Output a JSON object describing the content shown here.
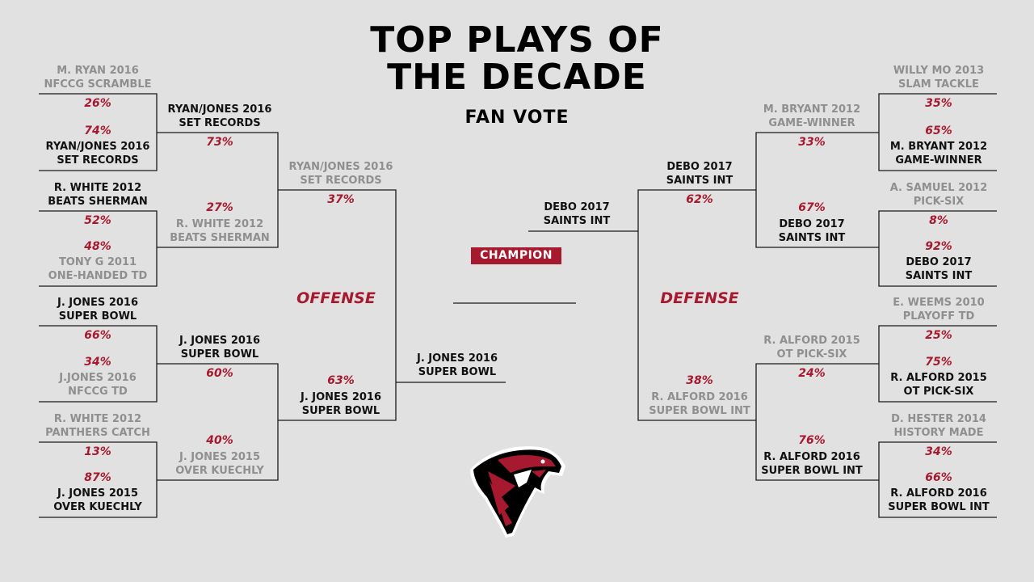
{
  "title": {
    "line1": "TOP PLAYS OF",
    "line2": "THE DECADE"
  },
  "subtitle": "FAN VOTE",
  "champion_label": "CHAMPION",
  "regions": {
    "left": "OFFENSE",
    "right": "DEFENSE"
  },
  "champion_name": "",
  "logo": "falcons-logo",
  "colors": {
    "accent": "#a6192e",
    "background": "#e1e1e1",
    "winner_text": "#111111",
    "loser_text": "#8f8f8f"
  },
  "left": {
    "r1": [
      {
        "top": {
          "name": [
            "M. RYAN 2016",
            "NFCCG SCRAMBLE"
          ],
          "pct": "26%",
          "winner": false
        },
        "bottom": {
          "name": [
            "RYAN/JONES 2016",
            "SET RECORDS"
          ],
          "pct": "74%",
          "winner": true
        }
      },
      {
        "top": {
          "name": [
            "R. WHITE 2012",
            "BEATS SHERMAN"
          ],
          "pct": "52%",
          "winner": true
        },
        "bottom": {
          "name": [
            "TONY G 2011",
            "ONE-HANDED TD"
          ],
          "pct": "48%",
          "winner": false
        }
      },
      {
        "top": {
          "name": [
            "J. JONES 2016",
            "SUPER BOWL"
          ],
          "pct": "66%",
          "winner": true
        },
        "bottom": {
          "name": [
            "J.JONES 2016",
            "NFCCG TD"
          ],
          "pct": "34%",
          "winner": false
        }
      },
      {
        "top": {
          "name": [
            "R. WHITE 2012",
            "PANTHERS CATCH"
          ],
          "pct": "13%",
          "winner": false
        },
        "bottom": {
          "name": [
            "J. JONES 2015",
            "OVER KUECHLY"
          ],
          "pct": "87%",
          "winner": true
        }
      }
    ],
    "r2": [
      {
        "top": {
          "name": [
            "RYAN/JONES 2016",
            "SET RECORDS"
          ],
          "pct": "73%",
          "winner": true
        },
        "bottom": {
          "name": [
            "R. WHITE 2012",
            "BEATS SHERMAN"
          ],
          "pct": "27%",
          "winner": false
        }
      },
      {
        "top": {
          "name": [
            "J. JONES 2016",
            "SUPER BOWL"
          ],
          "pct": "60%",
          "winner": true
        },
        "bottom": {
          "name": [
            "J. JONES 2015",
            "OVER KUECHLY"
          ],
          "pct": "40%",
          "winner": false
        }
      }
    ],
    "r3": {
      "top": {
        "name": [
          "RYAN/JONES 2016",
          "SET RECORDS"
        ],
        "pct": "37%",
        "winner": false
      },
      "bottom": {
        "name": [
          "J. JONES 2016",
          "SUPER BOWL"
        ],
        "pct": "63%",
        "winner": true
      }
    },
    "final": {
      "name": [
        "J. JONES 2016",
        "SUPER BOWL"
      ]
    }
  },
  "right": {
    "r1": [
      {
        "top": {
          "name": [
            "WILLY MO 2013",
            "SLAM TACKLE"
          ],
          "pct": "35%",
          "winner": false
        },
        "bottom": {
          "name": [
            "M. BRYANT 2012",
            "GAME-WINNER"
          ],
          "pct": "65%",
          "winner": true
        }
      },
      {
        "top": {
          "name": [
            "A. SAMUEL 2012",
            "PICK-SIX"
          ],
          "pct": "8%",
          "winner": false
        },
        "bottom": {
          "name": [
            "DEBO 2017",
            "SAINTS INT"
          ],
          "pct": "92%",
          "winner": true
        }
      },
      {
        "top": {
          "name": [
            "E. WEEMS 2010",
            "PLAYOFF TD"
          ],
          "pct": "25%",
          "winner": false
        },
        "bottom": {
          "name": [
            "R. ALFORD 2015",
            "OT PICK-SIX"
          ],
          "pct": "75%",
          "winner": true
        }
      },
      {
        "top": {
          "name": [
            "D. HESTER 2014",
            "HISTORY MADE"
          ],
          "pct": "34%",
          "winner": false
        },
        "bottom": {
          "name": [
            "R. ALFORD 2016",
            "SUPER BOWL INT"
          ],
          "pct": "66%",
          "winner": true
        }
      }
    ],
    "r2": [
      {
        "top": {
          "name": [
            "M. BRYANT 2012",
            "GAME-WINNER"
          ],
          "pct": "33%",
          "winner": false
        },
        "bottom": {
          "name": [
            "DEBO 2017",
            "SAINTS INT"
          ],
          "pct": "67%",
          "winner": true
        }
      },
      {
        "top": {
          "name": [
            "R. ALFORD 2015",
            "OT PICK-SIX"
          ],
          "pct": "24%",
          "winner": false
        },
        "bottom": {
          "name": [
            "R. ALFORD 2016",
            "SUPER BOWL INT"
          ],
          "pct": "76%",
          "winner": true
        }
      }
    ],
    "r3": {
      "top": {
        "name": [
          "DEBO 2017",
          "SAINTS INT"
        ],
        "pct": "62%",
        "winner": true
      },
      "bottom": {
        "name": [
          "R. ALFORD 2016",
          "SUPER BOWL INT"
        ],
        "pct": "38%",
        "winner": false
      }
    },
    "final": {
      "name": [
        "DEBO 2017",
        "SAINTS INT"
      ]
    }
  }
}
